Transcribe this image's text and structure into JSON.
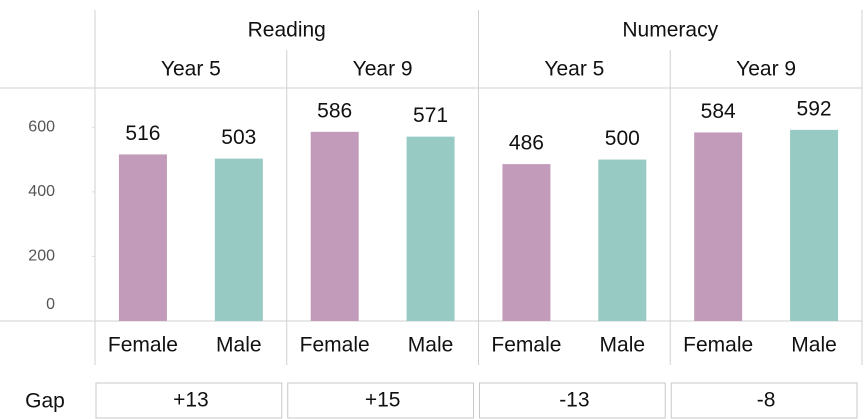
{
  "chart_data": {
    "type": "bar",
    "colors": [
      "#c39bba",
      "#97cac3"
    ],
    "ylim": [
      0,
      700
    ],
    "yticks": [
      0,
      200,
      400,
      600
    ],
    "gap_label": "Gap",
    "subjects": [
      {
        "name": "Reading",
        "panels": [
          {
            "year": "Year 5",
            "categories": [
              "Female",
              "Male"
            ],
            "values": [
              516,
              503
            ],
            "gap": "+13"
          },
          {
            "year": "Year 9",
            "categories": [
              "Female",
              "Male"
            ],
            "values": [
              586,
              571
            ],
            "gap": "+15"
          }
        ]
      },
      {
        "name": "Numeracy",
        "panels": [
          {
            "year": "Year 5",
            "categories": [
              "Female",
              "Male"
            ],
            "values": [
              486,
              500
            ],
            "gap": "-13"
          },
          {
            "year": "Year 9",
            "categories": [
              "Female",
              "Male"
            ],
            "values": [
              584,
              592
            ],
            "gap": "-8"
          }
        ]
      }
    ]
  }
}
